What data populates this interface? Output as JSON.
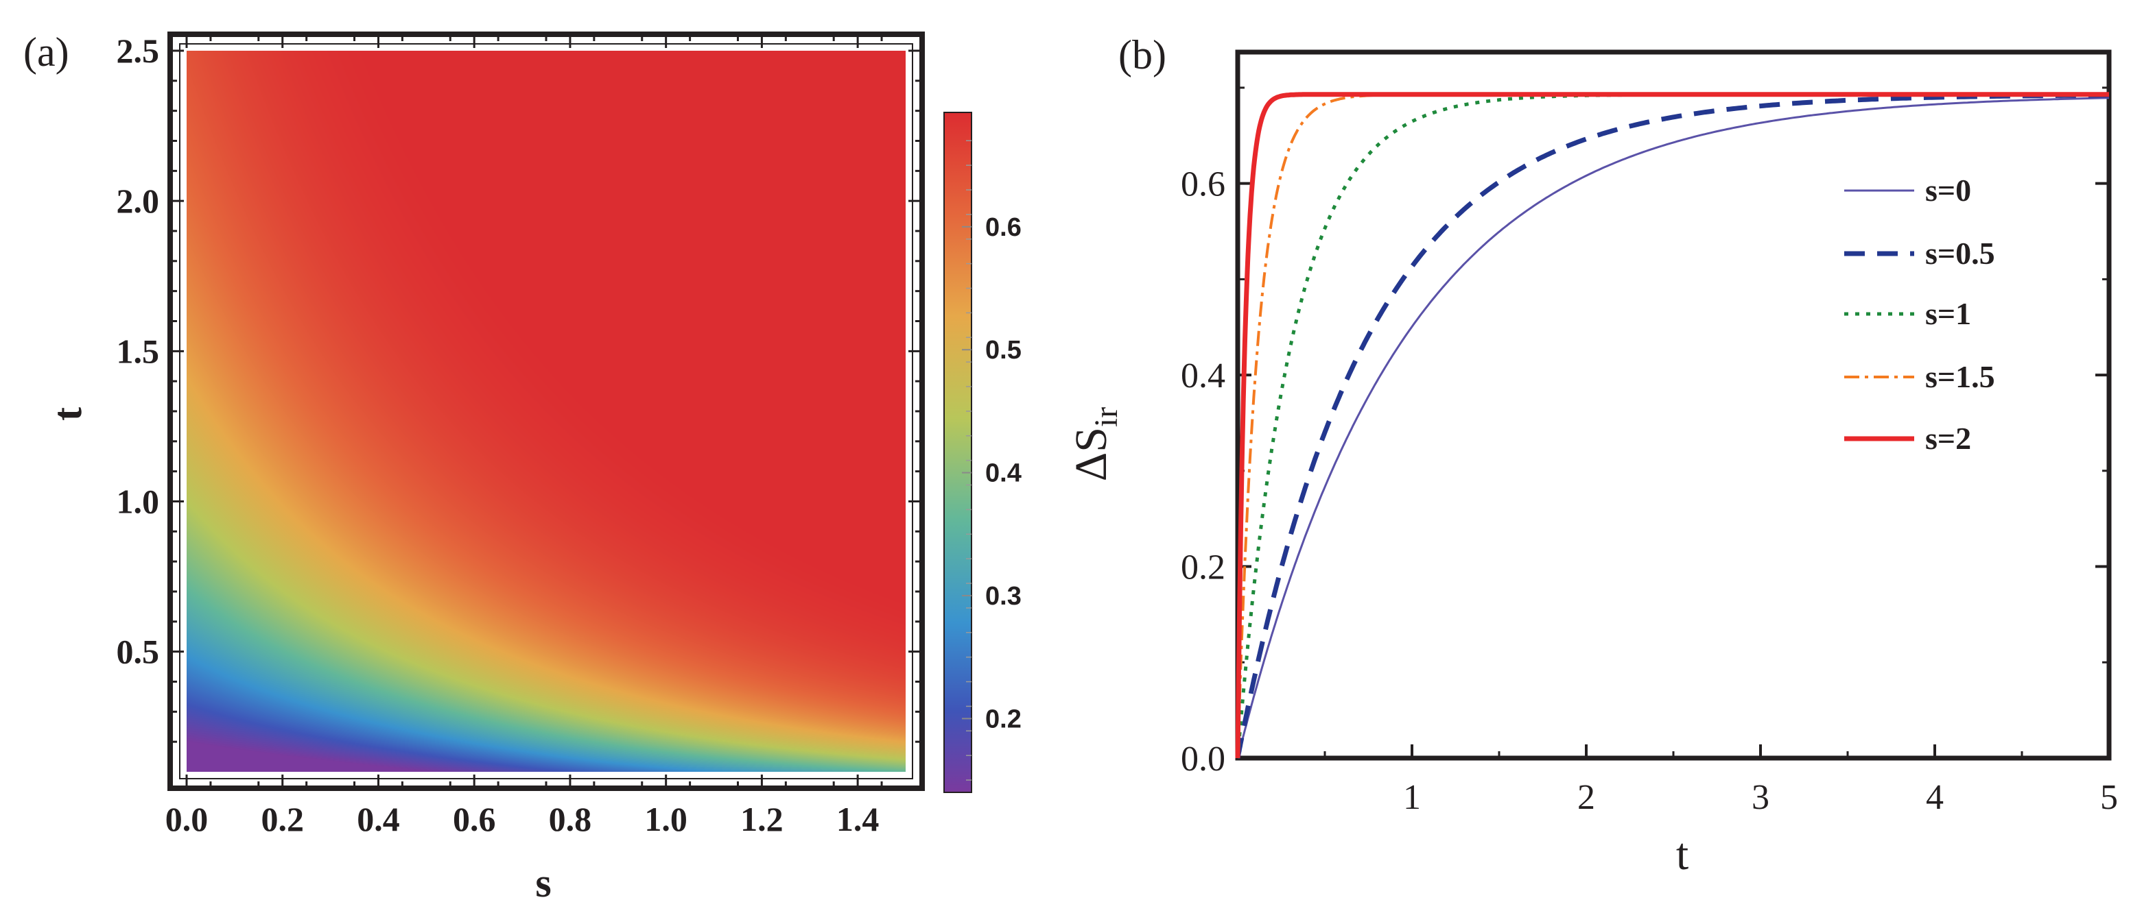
{
  "panels": {
    "a": {
      "label": "(a)"
    },
    "b": {
      "label": "(b)"
    }
  },
  "colors": {
    "frame": "#231f20",
    "s0": "#5a52a8",
    "s05": "#23378f",
    "s1": "#1f8a3c",
    "s15": "#f47a20",
    "s2": "#e8282b"
  },
  "chart_data": [
    {
      "type": "heatmap",
      "panel": "(a)",
      "xlabel": "s",
      "ylabel": "t",
      "xlim": [
        0.0,
        1.5
      ],
      "ylim": [
        0.1,
        2.5
      ],
      "xticks": [
        0.0,
        0.2,
        0.4,
        0.6,
        0.8,
        1.0,
        1.2,
        1.4
      ],
      "xtick_labels": [
        "0.0",
        "0.2",
        "0.4",
        "0.6",
        "0.8",
        "1.0",
        "1.2",
        "1.4"
      ],
      "yticks": [
        0.5,
        1.0,
        1.5,
        2.0,
        2.5
      ],
      "ytick_labels": [
        "0.5",
        "1.0",
        "1.5",
        "2.0",
        "2.5"
      ],
      "colorbar": {
        "min": 0.14,
        "max": 0.693,
        "ticks": [
          0.2,
          0.3,
          0.4,
          0.5,
          0.6
        ],
        "tick_labels": [
          "0.2",
          "0.3",
          "0.4",
          "0.5",
          "0.6"
        ],
        "colormap": "rainbow (violet to red)"
      },
      "function": "value increases with t and with s, saturating near 0.69 (ln 2)"
    },
    {
      "type": "line",
      "panel": "(b)",
      "xlabel": "t",
      "ylabel": "ΔS",
      "ylabel_sub": "ir",
      "xlim": [
        0,
        5
      ],
      "ylim": [
        0,
        0.72
      ],
      "xticks": [
        1,
        2,
        3,
        4,
        5
      ],
      "xtick_labels": [
        "1",
        "2",
        "3",
        "4",
        "5"
      ],
      "yticks": [
        0.0,
        0.2,
        0.4,
        0.6
      ],
      "ytick_labels": [
        "0.0",
        "0.2",
        "0.4",
        "0.6"
      ],
      "legend_position": "right",
      "series": [
        {
          "name": "s=0",
          "style": "solid-thin",
          "asymptote": 0.693,
          "rate": 1.05
        },
        {
          "name": "s=0.5",
          "style": "dashed",
          "asymptote": 0.693,
          "rate": 1.35
        },
        {
          "name": "s=1",
          "style": "dotted",
          "asymptote": 0.693,
          "rate": 3.2
        },
        {
          "name": "s=1.5",
          "style": "dash-dot",
          "asymptote": 0.693,
          "rate": 8.5
        },
        {
          "name": "s=2",
          "style": "solid-thick",
          "asymptote": 0.693,
          "rate": 24
        }
      ]
    }
  ]
}
